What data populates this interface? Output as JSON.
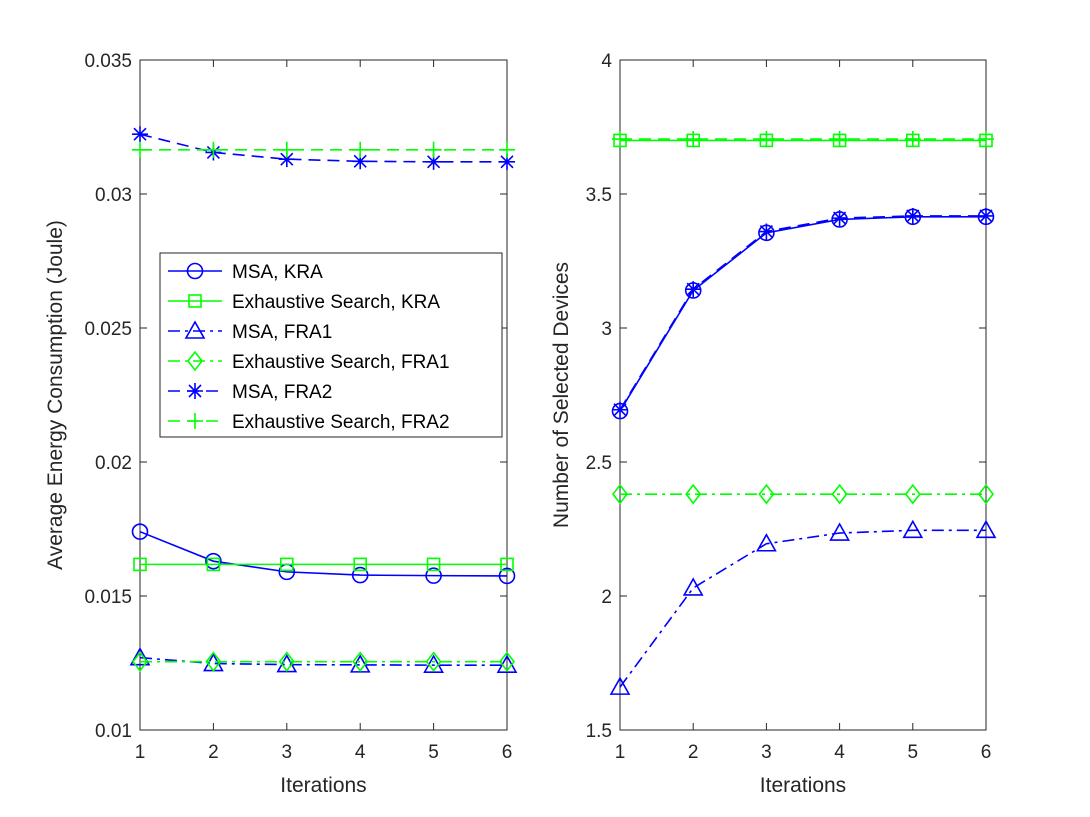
{
  "colors": {
    "blue": "#0000ff",
    "green": "#00ff00",
    "axis": "#262626"
  },
  "chart_data": [
    {
      "type": "line",
      "xlabel": "Iterations",
      "ylabel": "Average Energy Consumption (Joule)",
      "x": [
        1,
        2,
        3,
        4,
        5,
        6
      ],
      "xlim": [
        1,
        6
      ],
      "ylim": [
        0.01,
        0.035
      ],
      "xticks": [
        1,
        2,
        3,
        4,
        5,
        6
      ],
      "xtick_labels": [
        "1",
        "2",
        "3",
        "4",
        "5",
        "6"
      ],
      "yticks": [
        0.01,
        0.015,
        0.02,
        0.025,
        0.03,
        0.035
      ],
      "ytick_labels": [
        "0.01",
        "0.015",
        "0.02",
        "0.025",
        "0.03",
        "0.035"
      ],
      "legend": "center-left",
      "series": [
        {
          "name": "MSA, KRA",
          "color": "blue",
          "line": "solid",
          "marker": "circle",
          "values": [
            0.0174,
            0.0163,
            0.0159,
            0.01578,
            0.01576,
            0.01575
          ]
        },
        {
          "name": "Exhaustive Search, KRA",
          "color": "green",
          "line": "solid",
          "marker": "square",
          "values": [
            0.01618,
            0.01618,
            0.01618,
            0.01618,
            0.01618,
            0.01618
          ]
        },
        {
          "name": "MSA, FRA1",
          "color": "blue",
          "line": "dashdot",
          "marker": "triangle",
          "values": [
            0.0127,
            0.01248,
            0.01244,
            0.01243,
            0.01242,
            0.01242
          ]
        },
        {
          "name": "Exhaustive Search, FRA1",
          "color": "green",
          "line": "dashdot",
          "marker": "diamond",
          "values": [
            0.01255,
            0.01255,
            0.01255,
            0.01255,
            0.01255,
            0.01255
          ]
        },
        {
          "name": "MSA, FRA2",
          "color": "blue",
          "line": "dashed",
          "marker": "star",
          "values": [
            0.03223,
            0.03155,
            0.0313,
            0.03122,
            0.0312,
            0.0312
          ]
        },
        {
          "name": "Exhaustive Search, FRA2",
          "color": "green",
          "line": "dashed",
          "marker": "plus",
          "values": [
            0.03165,
            0.03165,
            0.03165,
            0.03165,
            0.03165,
            0.03165
          ]
        }
      ]
    },
    {
      "type": "line",
      "xlabel": "Iterations",
      "ylabel": "Number of Selected Devices",
      "x": [
        1,
        2,
        3,
        4,
        5,
        6
      ],
      "xlim": [
        1,
        6
      ],
      "ylim": [
        1.5,
        4
      ],
      "xticks": [
        1,
        2,
        3,
        4,
        5,
        6
      ],
      "xtick_labels": [
        "1",
        "2",
        "3",
        "4",
        "5",
        "6"
      ],
      "yticks": [
        1.5,
        2,
        2.5,
        3,
        3.5,
        4
      ],
      "ytick_labels": [
        "1.5",
        "2",
        "2.5",
        "3",
        "3.5",
        "4"
      ],
      "series": [
        {
          "name": "MSA, KRA",
          "color": "blue",
          "line": "solid",
          "marker": "circle",
          "values": [
            2.69,
            3.14,
            3.355,
            3.405,
            3.415,
            3.415
          ]
        },
        {
          "name": "Exhaustive Search, KRA",
          "color": "green",
          "line": "solid",
          "marker": "square",
          "values": [
            3.7,
            3.7,
            3.7,
            3.7,
            3.7,
            3.7
          ]
        },
        {
          "name": "MSA, FRA1",
          "color": "blue",
          "line": "dashdot",
          "marker": "triangle",
          "values": [
            1.66,
            2.03,
            2.195,
            2.235,
            2.245,
            2.245
          ]
        },
        {
          "name": "Exhaustive Search, FRA1",
          "color": "green",
          "line": "dashdot",
          "marker": "diamond",
          "values": [
            2.38,
            2.38,
            2.38,
            2.38,
            2.38,
            2.38
          ]
        },
        {
          "name": "MSA, FRA2",
          "color": "blue",
          "line": "dashed",
          "marker": "star",
          "values": [
            2.695,
            3.145,
            3.36,
            3.41,
            3.418,
            3.418
          ]
        },
        {
          "name": "Exhaustive Search, FRA2",
          "color": "green",
          "line": "dashed",
          "marker": "plus",
          "values": [
            3.705,
            3.705,
            3.705,
            3.705,
            3.705,
            3.705
          ]
        }
      ]
    }
  ]
}
